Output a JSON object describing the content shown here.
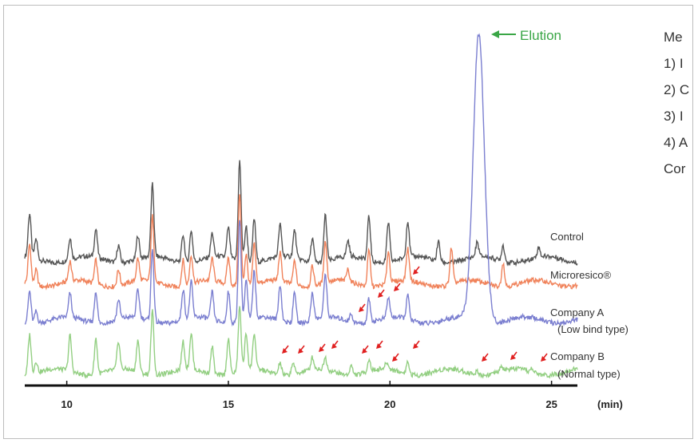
{
  "chart_data": {
    "type": "line",
    "title": "",
    "xlabel": "(min)",
    "ylabel": "",
    "xlim": [
      8.7,
      25.8
    ],
    "x_ticks": [
      10,
      15,
      20,
      25
    ],
    "grid": false,
    "legend": "labels beside each trace on the right",
    "series": [
      {
        "name": "Control",
        "color": "#555555",
        "peaks": [
          [
            8.85,
            55
          ],
          [
            9.05,
            25
          ],
          [
            10.1,
            28
          ],
          [
            10.9,
            35
          ],
          [
            11.6,
            22
          ],
          [
            12.2,
            30
          ],
          [
            12.65,
            90
          ],
          [
            13.6,
            35
          ],
          [
            13.85,
            40
          ],
          [
            14.5,
            30
          ],
          [
            15.0,
            38
          ],
          [
            15.35,
            125
          ],
          [
            15.55,
            45
          ],
          [
            15.8,
            55
          ],
          [
            16.6,
            40
          ],
          [
            17.05,
            35
          ],
          [
            17.6,
            30
          ],
          [
            18.0,
            58
          ],
          [
            18.7,
            20
          ],
          [
            19.35,
            55
          ],
          [
            19.95,
            50
          ],
          [
            20.55,
            45
          ],
          [
            21.5,
            25
          ],
          [
            22.7,
            18
          ],
          [
            23.5,
            20
          ],
          [
            24.6,
            12
          ]
        ]
      },
      {
        "name": "Microresico®",
        "color": "#f0825a",
        "peaks": [
          [
            8.85,
            50
          ],
          [
            9.05,
            20
          ],
          [
            10.1,
            25
          ],
          [
            10.9,
            30
          ],
          [
            11.6,
            20
          ],
          [
            12.2,
            28
          ],
          [
            12.65,
            82
          ],
          [
            13.6,
            32
          ],
          [
            13.85,
            36
          ],
          [
            14.5,
            28
          ],
          [
            15.0,
            34
          ],
          [
            15.35,
            115
          ],
          [
            15.55,
            40
          ],
          [
            15.8,
            50
          ],
          [
            16.6,
            35
          ],
          [
            17.05,
            30
          ],
          [
            17.6,
            25
          ],
          [
            18.0,
            52
          ],
          [
            18.7,
            15
          ],
          [
            19.35,
            45
          ],
          [
            19.95,
            40
          ],
          [
            20.55,
            40
          ],
          [
            21.9,
            45
          ],
          [
            23.5,
            30
          ]
        ]
      },
      {
        "name": "Company A",
        "color": "#7b7fd0",
        "peaks": [
          [
            8.85,
            40
          ],
          [
            9.05,
            15
          ],
          [
            10.1,
            30
          ],
          [
            10.9,
            40
          ],
          [
            11.6,
            25
          ],
          [
            12.2,
            35
          ],
          [
            12.65,
            90
          ],
          [
            13.6,
            38
          ],
          [
            13.85,
            45
          ],
          [
            14.5,
            35
          ],
          [
            15.0,
            40
          ],
          [
            15.35,
            130
          ],
          [
            15.55,
            50
          ],
          [
            15.8,
            60
          ],
          [
            16.6,
            45
          ],
          [
            17.05,
            40
          ],
          [
            17.6,
            35
          ],
          [
            18.0,
            55
          ],
          [
            18.8,
            10
          ],
          [
            19.35,
            30
          ],
          [
            19.95,
            25
          ],
          [
            20.55,
            30
          ],
          [
            22.75,
            360
          ]
        ]
      },
      {
        "name": "Company B",
        "color": "#93cf82",
        "peaks": [
          [
            8.85,
            50
          ],
          [
            9.05,
            15
          ],
          [
            10.1,
            45
          ],
          [
            10.9,
            45
          ],
          [
            11.6,
            35
          ],
          [
            12.2,
            40
          ],
          [
            12.65,
            80
          ],
          [
            13.6,
            35
          ],
          [
            13.85,
            45
          ],
          [
            14.5,
            35
          ],
          [
            15.0,
            45
          ],
          [
            15.35,
            80
          ],
          [
            15.55,
            45
          ],
          [
            15.8,
            45
          ],
          [
            16.6,
            15
          ],
          [
            17.0,
            15
          ],
          [
            17.6,
            15
          ],
          [
            18.0,
            15
          ],
          [
            18.8,
            12
          ],
          [
            19.35,
            15
          ],
          [
            19.9,
            8
          ],
          [
            20.55,
            15
          ],
          [
            22.7,
            5
          ],
          [
            23.45,
            5
          ],
          [
            24.4,
            5
          ]
        ]
      }
    ],
    "annotations": [
      "Elution",
      "Control",
      "Microresico®",
      "Company A",
      "(Low bind type)",
      "Company B",
      "(Normal type)"
    ]
  },
  "side_text": [
    "Me",
    "1) I",
    "2) C",
    "3) I",
    "4) A",
    "Cor"
  ]
}
